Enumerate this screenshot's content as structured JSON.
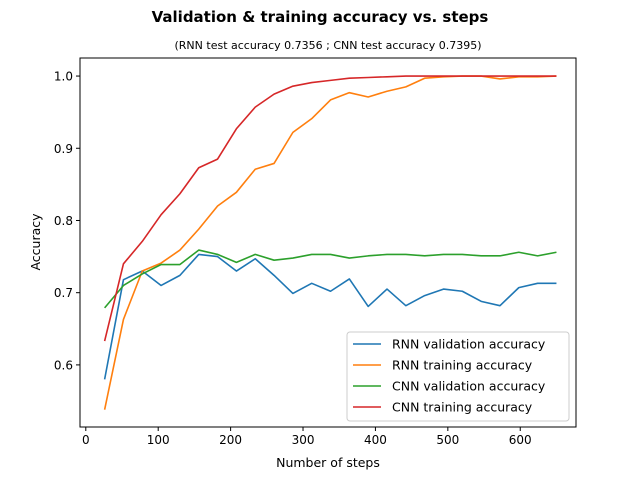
{
  "chart_data": {
    "type": "line",
    "title": "Validation & training accuracy vs. steps",
    "subtitle": "(RNN test accuracy 0.7356 ; CNN test accuracy 0.7395)",
    "xlabel": "Number of steps",
    "ylabel": "Accuracy",
    "xlim": [
      -8,
      677
    ],
    "ylim": [
      0.514,
      1.025
    ],
    "xticks": [
      0,
      100,
      200,
      300,
      400,
      500,
      600
    ],
    "yticks": [
      0.6,
      0.7,
      0.8,
      0.9,
      1.0
    ],
    "xtick_labels": [
      "0",
      "100",
      "200",
      "300",
      "400",
      "500",
      "600"
    ],
    "ytick_labels": [
      "0.6",
      "0.7",
      "0.8",
      "0.9",
      "1.0"
    ],
    "x": [
      26,
      52,
      78,
      104,
      130,
      156,
      182,
      208,
      234,
      260,
      286,
      312,
      338,
      364,
      390,
      416,
      442,
      468,
      494,
      520,
      546,
      572,
      598,
      624,
      650
    ],
    "grid": false,
    "legend_position": "lower-right",
    "series": [
      {
        "name": "RNN validation accuracy",
        "color": "#1f77b4",
        "values": [
          0.58,
          0.718,
          0.73,
          0.71,
          0.724,
          0.753,
          0.75,
          0.73,
          0.747,
          0.724,
          0.699,
          0.713,
          0.702,
          0.719,
          0.681,
          0.705,
          0.682,
          0.696,
          0.705,
          0.702,
          0.688,
          0.682,
          0.707,
          0.713,
          0.713
        ]
      },
      {
        "name": "RNN training accuracy",
        "color": "#ff7f0e",
        "values": [
          0.538,
          0.663,
          0.73,
          0.741,
          0.759,
          0.788,
          0.82,
          0.839,
          0.871,
          0.879,
          0.922,
          0.941,
          0.967,
          0.977,
          0.971,
          0.979,
          0.985,
          0.997,
          0.999,
          1.0,
          1.0,
          0.996,
          0.999,
          0.999,
          1.0
        ]
      },
      {
        "name": "CNN validation accuracy",
        "color": "#2ca02c",
        "values": [
          0.679,
          0.71,
          0.726,
          0.739,
          0.739,
          0.759,
          0.753,
          0.742,
          0.753,
          0.745,
          0.748,
          0.753,
          0.753,
          0.748,
          0.751,
          0.753,
          0.753,
          0.751,
          0.753,
          0.753,
          0.751,
          0.751,
          0.756,
          0.751,
          0.756
        ]
      },
      {
        "name": "CNN training accuracy",
        "color": "#d62728",
        "values": [
          0.633,
          0.74,
          0.771,
          0.808,
          0.837,
          0.873,
          0.885,
          0.927,
          0.957,
          0.975,
          0.986,
          0.991,
          0.994,
          0.997,
          0.998,
          0.999,
          1.0,
          1.0,
          1.0,
          1.0,
          1.0,
          1.0,
          1.0,
          1.0,
          1.0
        ]
      }
    ]
  }
}
